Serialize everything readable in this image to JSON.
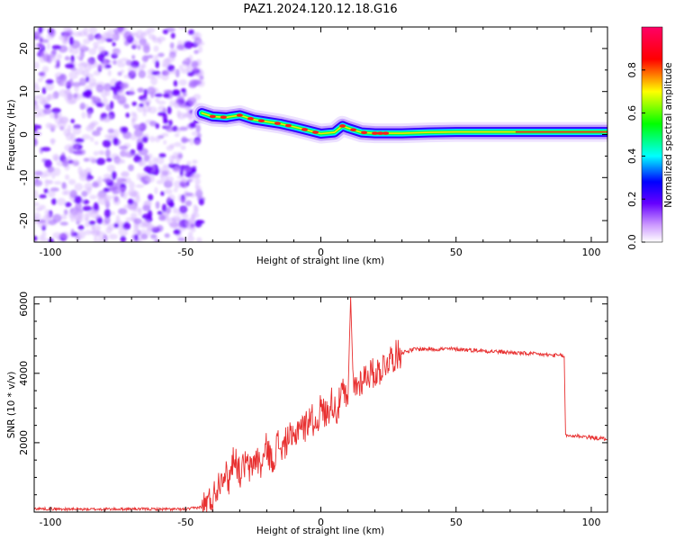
{
  "title": "PAZ1.2024.120.12.18.G16",
  "chart_data": [
    {
      "type": "heatmap",
      "xlabel": "Height of straight line (km)",
      "ylabel": "Frequency (Hz)",
      "xlim": [
        -106,
        106
      ],
      "ylim": [
        -25,
        25
      ],
      "x_ticks": [
        -100,
        -50,
        0,
        50,
        100
      ],
      "y_ticks": [
        -20,
        -10,
        0,
        10,
        20
      ],
      "colorbar": {
        "label": "Normalized spectral amplitude",
        "range": [
          0,
          1
        ],
        "ticks": [
          0.0,
          0.2,
          0.4,
          0.6,
          0.8
        ],
        "colormap": [
          "#ffffff",
          "#cc99ff",
          "#6600ff",
          "#0000ff",
          "#00ffff",
          "#00ff00",
          "#ffff00",
          "#ff0000",
          "#ff0099"
        ]
      },
      "noise_region_x": [
        -106,
        -44
      ],
      "signal_ridge": {
        "x": [
          -44,
          -40,
          -35,
          -30,
          -25,
          -20,
          -15,
          -10,
          -5,
          0,
          5,
          8,
          10,
          15,
          20,
          30,
          40,
          50,
          60,
          70,
          80,
          90,
          100,
          106
        ],
        "frequency": [
          5.0,
          4.2,
          4.0,
          4.5,
          3.5,
          3.0,
          2.5,
          1.8,
          1.0,
          0.2,
          0.5,
          2.0,
          1.5,
          0.5,
          0.3,
          0.3,
          0.5,
          0.6,
          0.6,
          0.6,
          0.6,
          0.6,
          0.6,
          0.6
        ]
      }
    },
    {
      "type": "line",
      "xlabel": "Height of straight line (km)",
      "ylabel": "SNR (10 * v/v)",
      "xlim": [
        -106,
        106
      ],
      "ylim": [
        0,
        6200
      ],
      "x_ticks": [
        -100,
        -50,
        0,
        50,
        100
      ],
      "y_ticks": [
        2000,
        4000,
        6000
      ],
      "color": "#e83030",
      "series": [
        {
          "x": [
            -106,
            -90,
            -70,
            -50,
            -44,
            -40,
            -38,
            -36,
            -34,
            -32,
            -30,
            -28,
            -26,
            -24,
            -22,
            -20,
            -18,
            -16,
            -14,
            -12,
            -10,
            -8,
            -6,
            -4,
            -2,
            0,
            2,
            4,
            6,
            8,
            10,
            11,
            12,
            14,
            16,
            18,
            20,
            22,
            25,
            30,
            35,
            40,
            50,
            60,
            70,
            80,
            90,
            90.5,
            95,
            100,
            106
          ],
          "y": [
            100,
            80,
            90,
            80,
            150,
            400,
            800,
            1200,
            900,
            1700,
            1100,
            1400,
            1200,
            1600,
            1300,
            1900,
            1400,
            2000,
            1800,
            2200,
            2000,
            2600,
            2400,
            2800,
            2500,
            3000,
            2800,
            3200,
            2900,
            3500,
            3100,
            6200,
            3600,
            3700,
            3900,
            4000,
            4000,
            4100,
            4400,
            4600,
            4700,
            4700,
            4700,
            4650,
            4600,
            4550,
            4500,
            2200,
            2200,
            2150,
            2100
          ]
        }
      ]
    }
  ]
}
